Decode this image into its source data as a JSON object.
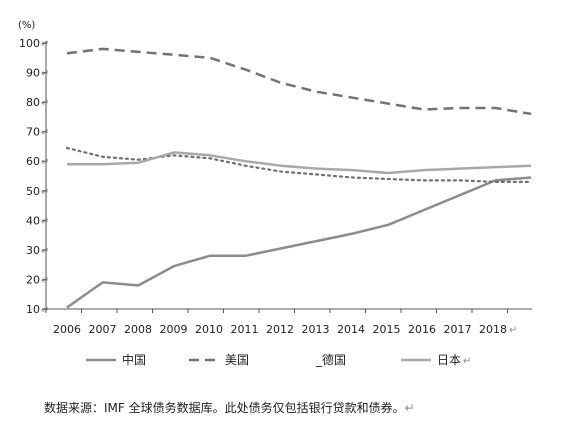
{
  "chart_data": {
    "type": "line",
    "ylabel": "(%)",
    "xlabel": "",
    "ylim": [
      10,
      100
    ],
    "yticks": [
      10,
      20,
      30,
      40,
      50,
      60,
      70,
      80,
      90,
      100
    ],
    "x": [
      2006,
      2007,
      2008,
      2009,
      2010,
      2011,
      2012,
      2013,
      2014,
      2015,
      2016,
      2017,
      2018,
      2019
    ],
    "xtick_labels": [
      "2006",
      "2007",
      "2008",
      "2009",
      "2010",
      "2011",
      "2012",
      "2013",
      "2014",
      "2015",
      "2016",
      "2017",
      "2018"
    ],
    "grid": false,
    "legend_position": "bottom",
    "series": [
      {
        "name": "中国",
        "style": "solid",
        "color": "#8c8c8c",
        "values": [
          10.5,
          19,
          18,
          24.5,
          28,
          28,
          30.5,
          33,
          35.5,
          38.5,
          43.5,
          48.5,
          53.5,
          54.5
        ]
      },
      {
        "name": "美国",
        "style": "dashed",
        "color": "#737373",
        "values": [
          96.5,
          98,
          97,
          96,
          95,
          91,
          86.5,
          83.5,
          81.5,
          79.5,
          77.5,
          78,
          78,
          76
        ]
      },
      {
        "name": "_德国",
        "style": "dotted",
        "color": "#6e6e6e",
        "values": [
          64.5,
          61.5,
          60.5,
          62,
          61,
          58.5,
          56.5,
          55.5,
          54.5,
          54,
          53.5,
          53.5,
          53,
          53
        ]
      },
      {
        "name": "日本",
        "style": "solid",
        "color": "#a8a8a8",
        "values": [
          59,
          59,
          59.5,
          63,
          62,
          60,
          58.5,
          57.5,
          57,
          56,
          57,
          57.5,
          58,
          58.5
        ]
      }
    ]
  },
  "marks": {
    "return": "↵"
  },
  "note": "数据来源：IMF 全球债务数据库。此处债务仅包括银行贷款和债券。"
}
